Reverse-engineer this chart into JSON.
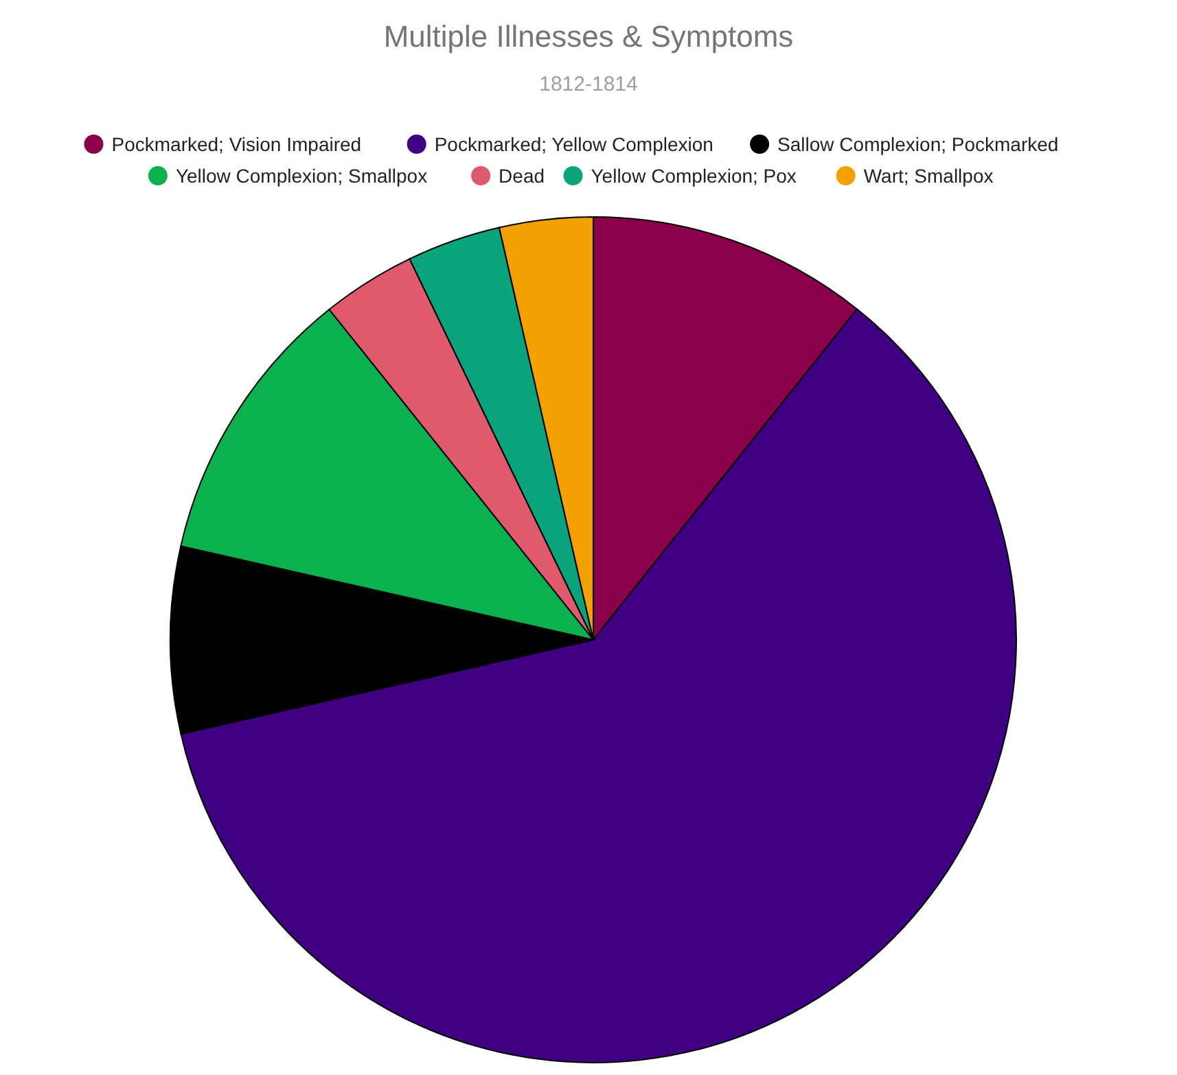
{
  "chart_data": {
    "type": "pie",
    "title": "Multiple Illnesses & Symptoms",
    "subtitle": "1812-1814",
    "legend": "top",
    "categories": [
      "Pockmarked; Vision Impaired",
      "Pockmarked; Yellow Complexion",
      "Sallow Complexion; Pockmarked",
      "Yellow Complexion; Smallpox",
      "Dead",
      "Yellow Complexion; Pox",
      "Wart; Smallpox"
    ],
    "values": [
      10.71,
      60.71,
      7.14,
      10.71,
      3.58,
      3.58,
      3.57
    ],
    "colors": [
      "#8b004b",
      "#3f0081",
      "#000000",
      "#0bb14f",
      "#e05a6e",
      "#0aa37b",
      "#f2a100"
    ]
  }
}
